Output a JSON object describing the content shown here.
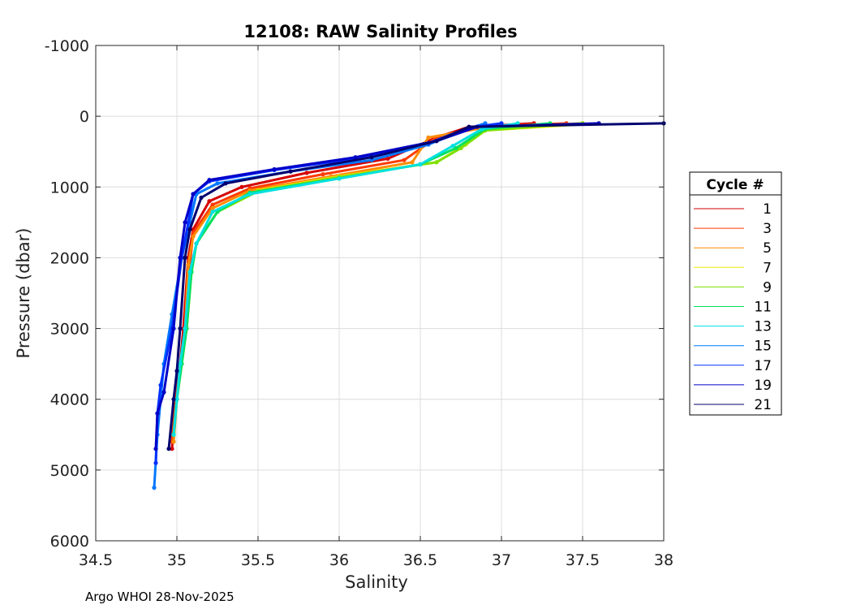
{
  "chart_data": {
    "type": "line",
    "title": "12108: RAW Salinity Profiles",
    "xlabel": "Salinity",
    "ylabel": "Pressure (dbar)",
    "xlim": [
      34.5,
      38
    ],
    "ylim": [
      -1000,
      6000
    ],
    "y_reversed": true,
    "x_ticks": [
      "34.5",
      "35",
      "35.5",
      "36",
      "36.5",
      "37",
      "37.5",
      "38"
    ],
    "y_ticks": [
      "-1000",
      "0",
      "1000",
      "2000",
      "3000",
      "4000",
      "5000",
      "6000"
    ],
    "grid": true,
    "legend": {
      "title": "Cycle #",
      "position": "right",
      "entries": [
        "1",
        "3",
        "5",
        "7",
        "9",
        "11",
        "13",
        "15",
        "17",
        "19",
        "21"
      ]
    },
    "series": [
      {
        "name": "1",
        "color": "#d40000",
        "salinity": [
          37.2,
          36.8,
          36.6,
          36.3,
          35.8,
          35.4,
          35.2,
          35.1,
          35.07,
          35.04,
          35.02,
          34.99,
          34.97
        ],
        "pressure": [
          100,
          150,
          300,
          600,
          800,
          1000,
          1200,
          1600,
          2000,
          3000,
          3500,
          4000,
          4700
        ]
      },
      {
        "name": "3",
        "color": "#ff3a00",
        "salinity": [
          37.4,
          36.85,
          36.6,
          36.4,
          35.9,
          35.45,
          35.22,
          35.1,
          35.08,
          35.05,
          35.02,
          34.99,
          34.97
        ],
        "pressure": [
          100,
          150,
          300,
          620,
          820,
          1020,
          1250,
          1650,
          2100,
          3000,
          3600,
          4000,
          4600
        ]
      },
      {
        "name": "5",
        "color": "#ff8c00",
        "salinity": [
          37.5,
          36.9,
          36.55,
          36.45,
          35.95,
          35.45,
          35.22,
          35.1,
          35.07,
          35.05,
          35.02,
          35.0,
          34.98
        ],
        "pressure": [
          100,
          160,
          300,
          650,
          850,
          1050,
          1300,
          1700,
          2100,
          3000,
          3600,
          4000,
          4600
        ]
      },
      {
        "name": "7",
        "color": "#e8e800",
        "salinity": [
          37.6,
          36.9,
          36.78,
          36.6,
          36.0,
          35.5,
          35.25,
          35.12,
          35.09,
          35.06,
          35.02,
          35.0,
          34.98
        ],
        "pressure": [
          100,
          200,
          400,
          650,
          850,
          1050,
          1350,
          1800,
          2200,
          3000,
          3600,
          4000,
          4500
        ]
      },
      {
        "name": "9",
        "color": "#7ee000",
        "salinity": [
          37.5,
          36.9,
          36.75,
          36.6,
          36.0,
          35.5,
          35.25,
          35.12,
          35.09,
          35.06,
          35.03,
          35.0,
          34.98
        ],
        "pressure": [
          100,
          200,
          450,
          650,
          860,
          1060,
          1350,
          1800,
          2200,
          3000,
          3500,
          4000,
          4500
        ]
      },
      {
        "name": "11",
        "color": "#00e060",
        "salinity": [
          37.3,
          36.9,
          36.72,
          36.5,
          36.0,
          35.45,
          35.25,
          35.12,
          35.09,
          35.06,
          35.03,
          35.0,
          34.98
        ],
        "pressure": [
          100,
          180,
          450,
          680,
          880,
          1080,
          1350,
          1800,
          2200,
          3000,
          3500,
          4000,
          4500
        ]
      },
      {
        "name": "13",
        "color": "#00e0e0",
        "salinity": [
          37.1,
          36.88,
          36.7,
          36.5,
          36.0,
          35.45,
          35.22,
          35.12,
          35.08,
          35.05,
          35.02,
          35.0,
          34.98
        ],
        "pressure": [
          100,
          180,
          420,
          680,
          880,
          1100,
          1350,
          1800,
          2200,
          3000,
          3500,
          4000,
          4500
        ]
      },
      {
        "name": "15",
        "color": "#0078ff",
        "salinity": [
          36.9,
          36.8,
          36.55,
          36.2,
          35.7,
          35.25,
          35.12,
          35.08,
          35.03,
          34.97,
          34.92,
          34.88,
          34.86
        ],
        "pressure": [
          100,
          170,
          400,
          620,
          780,
          950,
          1100,
          1500,
          2000,
          2800,
          3500,
          4500,
          5250
        ]
      },
      {
        "name": "17",
        "color": "#0030ff",
        "salinity": [
          37.0,
          36.8,
          36.55,
          36.1,
          35.6,
          35.2,
          35.1,
          35.07,
          35.03,
          34.97,
          34.9,
          34.88,
          34.87
        ],
        "pressure": [
          100,
          160,
          380,
          600,
          760,
          920,
          1100,
          1500,
          2000,
          3000,
          3800,
          4200,
          4900
        ]
      },
      {
        "name": "19",
        "color": "#0000c8",
        "salinity": [
          37.6,
          36.85,
          36.6,
          36.1,
          35.6,
          35.2,
          35.1,
          35.05,
          35.02,
          34.98,
          34.92,
          34.88,
          34.87
        ],
        "pressure": [
          100,
          150,
          350,
          580,
          750,
          900,
          1100,
          1500,
          2000,
          3000,
          3900,
          4200,
          4700
        ]
      },
      {
        "name": "21",
        "color": "#000070",
        "salinity": [
          38.0,
          36.8,
          36.6,
          36.2,
          35.7,
          35.3,
          35.15,
          35.08,
          35.05,
          35.02,
          35.0,
          34.98,
          34.95
        ],
        "pressure": [
          100,
          150,
          350,
          580,
          780,
          950,
          1150,
          1600,
          2000,
          3000,
          3600,
          4000,
          4700
        ]
      }
    ]
  },
  "footer": {
    "text": "Argo WHOI 28-Nov-2025"
  }
}
